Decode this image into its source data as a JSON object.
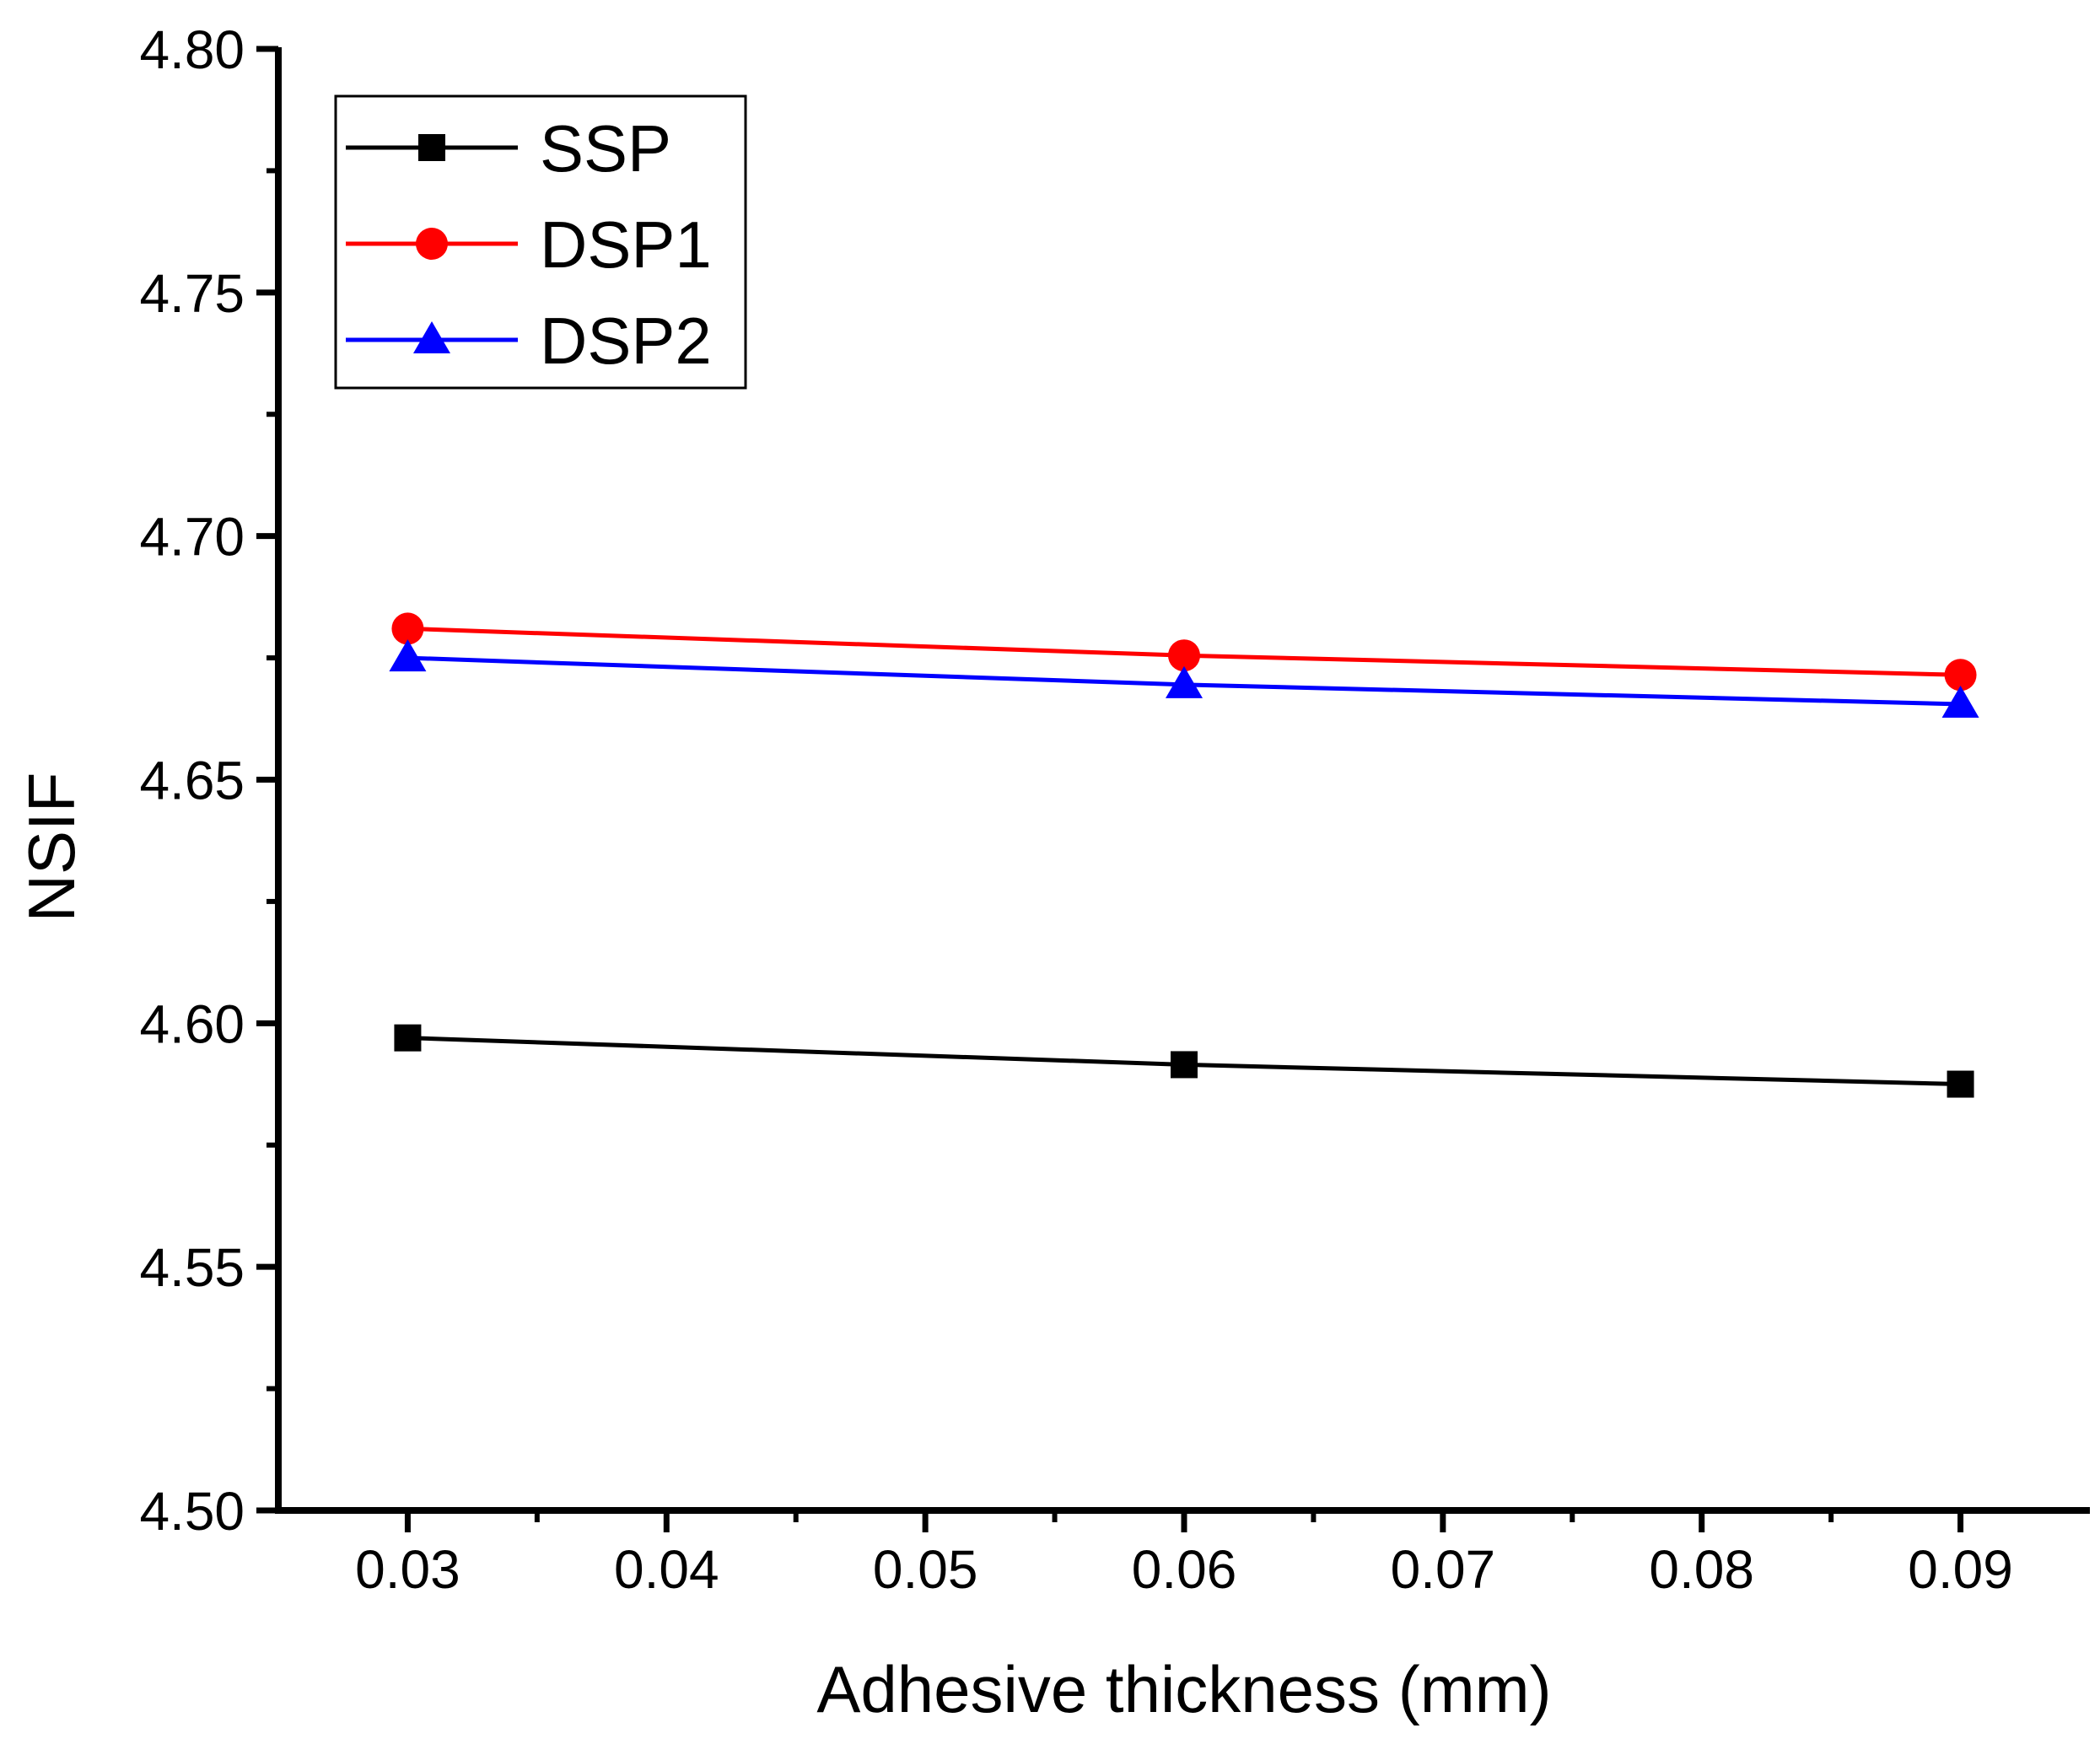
{
  "chart_data": {
    "type": "line",
    "title": "",
    "xlabel": "Adhesive thickness (mm)",
    "ylabel": "NSIF",
    "xlim": [
      0.025,
      0.095
    ],
    "ylim": [
      4.5,
      4.8
    ],
    "xticks": [
      0.03,
      0.04,
      0.05,
      0.06,
      0.07,
      0.08,
      0.09
    ],
    "xtick_labels": [
      "0.03",
      "0.04",
      "0.05",
      "0.06",
      "0.07",
      "0.08",
      "0.09"
    ],
    "yticks": [
      4.5,
      4.55,
      4.6,
      4.65,
      4.7,
      4.75,
      4.8
    ],
    "ytick_labels": [
      "4.50",
      "4.55",
      "4.60",
      "4.65",
      "4.70",
      "4.75",
      "4.80"
    ],
    "grid": false,
    "legend_position": "top-left",
    "x": [
      0.03,
      0.06,
      0.09
    ],
    "series": [
      {
        "name": "SSP",
        "color": "#000000",
        "marker": "square",
        "values": [
          4.597,
          4.5915,
          4.5875
        ]
      },
      {
        "name": "DSP1",
        "color": "#ff0000",
        "marker": "circle",
        "values": [
          4.681,
          4.6755,
          4.6715
        ]
      },
      {
        "name": "DSP2",
        "color": "#0000ff",
        "marker": "triangle",
        "values": [
          4.675,
          4.6695,
          4.6655
        ]
      }
    ]
  }
}
